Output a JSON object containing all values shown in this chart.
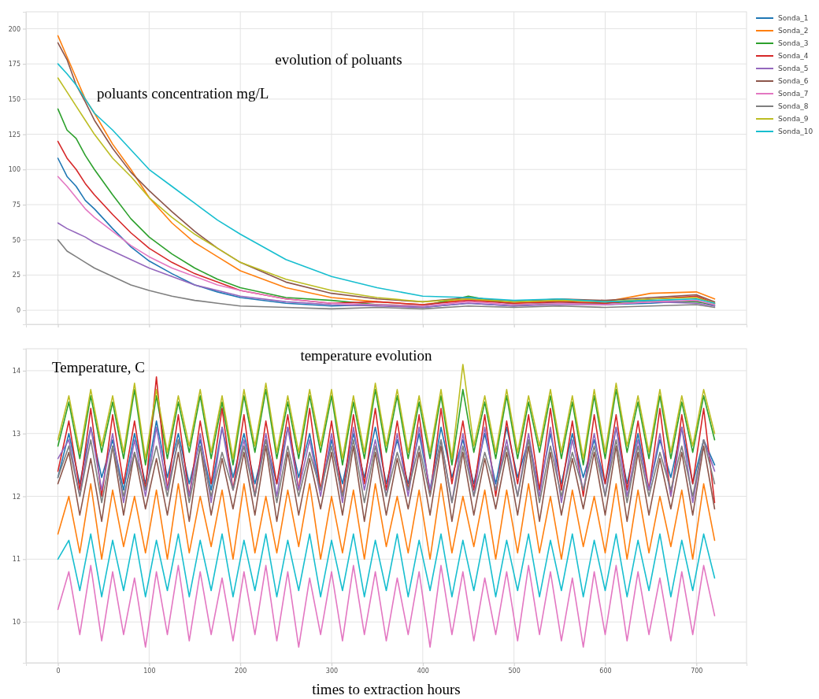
{
  "chart_data": [
    {
      "type": "line",
      "title": "evolution of poluants",
      "ylabel": "poluants concentration mg/L",
      "x": [
        0,
        10,
        20,
        30,
        40,
        60,
        80,
        100,
        125,
        150,
        175,
        200,
        250,
        300,
        350,
        400,
        450,
        500,
        550,
        600,
        650,
        700,
        720
      ],
      "xlim": [
        -35,
        755
      ],
      "xticks": [
        0,
        100,
        200,
        300,
        400,
        500,
        600,
        700
      ],
      "ylim": [
        -10,
        212
      ],
      "yticks": [
        0,
        25,
        50,
        75,
        100,
        125,
        150,
        175,
        200
      ],
      "grid": true,
      "legend": "top right",
      "tick_labels": "y",
      "series": [
        {
          "name": "Sonda_1",
          "color": "#1f77b4",
          "values": [
            108,
            95,
            88,
            78,
            72,
            58,
            45,
            35,
            26,
            18,
            13,
            9,
            5,
            3,
            4,
            2,
            5,
            3,
            6,
            4,
            5,
            7,
            3
          ]
        },
        {
          "name": "Sonda_2",
          "color": "#ff7f0e",
          "values": [
            195,
            180,
            165,
            150,
            140,
            118,
            100,
            80,
            62,
            48,
            38,
            28,
            16,
            9,
            6,
            4,
            8,
            5,
            7,
            6,
            12,
            13,
            8
          ]
        },
        {
          "name": "Sonda_3",
          "color": "#2ca02c",
          "values": [
            143,
            128,
            122,
            110,
            100,
            82,
            65,
            52,
            40,
            30,
            22,
            16,
            9,
            7,
            4,
            3,
            10,
            4,
            5,
            5,
            7,
            6,
            4
          ]
        },
        {
          "name": "Sonda_4",
          "color": "#d62728",
          "values": [
            120,
            108,
            100,
            90,
            82,
            68,
            55,
            44,
            34,
            26,
            20,
            14,
            8,
            5,
            6,
            4,
            7,
            5,
            6,
            5,
            8,
            10,
            5
          ]
        },
        {
          "name": "Sonda_5",
          "color": "#9467bd",
          "values": [
            62,
            58,
            55,
            52,
            48,
            42,
            36,
            30,
            24,
            18,
            14,
            10,
            6,
            4,
            3,
            2,
            5,
            3,
            4,
            4,
            6,
            5,
            3
          ]
        },
        {
          "name": "Sonda_6",
          "color": "#8c564b",
          "values": [
            190,
            178,
            160,
            148,
            135,
            115,
            98,
            85,
            70,
            56,
            44,
            34,
            20,
            12,
            8,
            6,
            9,
            6,
            8,
            7,
            9,
            11,
            6
          ]
        },
        {
          "name": "Sonda_7",
          "color": "#e377c2",
          "values": [
            95,
            88,
            80,
            72,
            66,
            56,
            46,
            38,
            30,
            24,
            18,
            14,
            8,
            5,
            4,
            3,
            6,
            4,
            5,
            4,
            6,
            7,
            4
          ]
        },
        {
          "name": "Sonda_8",
          "color": "#7f7f7f",
          "values": [
            50,
            42,
            38,
            34,
            30,
            24,
            18,
            14,
            10,
            7,
            5,
            3,
            2,
            1,
            2,
            1,
            3,
            2,
            3,
            2,
            3,
            4,
            2
          ]
        },
        {
          "name": "Sonda_9",
          "color": "#bcbd22",
          "values": [
            165,
            155,
            145,
            135,
            125,
            108,
            95,
            80,
            66,
            54,
            44,
            34,
            22,
            14,
            9,
            6,
            8,
            6,
            7,
            6,
            8,
            9,
            5
          ]
        },
        {
          "name": "Sonda_10",
          "color": "#17becf",
          "values": [
            175,
            168,
            160,
            150,
            140,
            128,
            114,
            100,
            88,
            76,
            64,
            54,
            36,
            24,
            16,
            10,
            9,
            7,
            8,
            6,
            7,
            8,
            5
          ]
        }
      ]
    },
    {
      "type": "line",
      "title": "temperature evolution",
      "ylabel": "Temperature, C",
      "xlabel": "times to extraction hours",
      "x": [
        0,
        12,
        24,
        36,
        48,
        60,
        72,
        84,
        96,
        108,
        120,
        132,
        144,
        156,
        168,
        180,
        192,
        204,
        216,
        228,
        240,
        252,
        264,
        276,
        288,
        300,
        312,
        324,
        336,
        348,
        360,
        372,
        384,
        396,
        408,
        420,
        432,
        444,
        456,
        468,
        480,
        492,
        504,
        516,
        528,
        540,
        552,
        564,
        576,
        588,
        600,
        612,
        624,
        636,
        648,
        660,
        672,
        684,
        696,
        708,
        720
      ],
      "xlim": [
        -35,
        755
      ],
      "xticks": [
        0,
        100,
        200,
        300,
        400,
        500,
        600,
        700
      ],
      "ylim": [
        9.35,
        14.35
      ],
      "yticks": [
        10,
        11,
        12,
        13,
        14
      ],
      "grid": true,
      "series": [
        {
          "color": "#1f77b4",
          "values": [
            12.3,
            13.0,
            12.2,
            13.1,
            12.3,
            12.9,
            12.1,
            13.0,
            12.2,
            13.2,
            12.3,
            13.0,
            12.2,
            12.9,
            12.1,
            13.1,
            12.3,
            13.0,
            12.2,
            12.9,
            12.2,
            13.1,
            12.3,
            13.0,
            12.1,
            12.9,
            12.2,
            13.0,
            12.3,
            13.1,
            12.2,
            12.9,
            12.2,
            13.0,
            12.1,
            13.1,
            12.3,
            12.9,
            12.2,
            13.0,
            12.2,
            13.1,
            12.3,
            12.9,
            12.1,
            13.0,
            12.2,
            13.0,
            12.3,
            12.9,
            12.2,
            13.1,
            12.2,
            13.0,
            12.1,
            12.9,
            12.3,
            13.1,
            12.2,
            12.9,
            12.5
          ]
        },
        {
          "color": "#ff7f0e",
          "values": [
            11.4,
            12.0,
            11.1,
            12.2,
            11.0,
            12.1,
            11.2,
            12.0,
            11.1,
            12.1,
            11.0,
            12.2,
            11.1,
            12.0,
            11.2,
            12.1,
            11.0,
            12.2,
            11.1,
            12.0,
            11.1,
            12.1,
            11.2,
            12.2,
            11.0,
            12.0,
            11.1,
            12.1,
            11.0,
            12.2,
            11.2,
            12.0,
            11.1,
            12.1,
            11.0,
            12.2,
            11.1,
            12.0,
            11.2,
            12.1,
            11.0,
            12.1,
            11.1,
            12.2,
            11.1,
            12.0,
            11.0,
            12.1,
            11.2,
            12.0,
            11.1,
            12.2,
            11.0,
            12.1,
            11.1,
            12.0,
            11.2,
            12.1,
            11.0,
            12.2,
            11.3
          ]
        },
        {
          "color": "#2ca02c",
          "values": [
            12.8,
            13.5,
            12.6,
            13.6,
            12.7,
            13.5,
            12.6,
            13.7,
            12.5,
            13.6,
            12.6,
            13.5,
            12.7,
            13.6,
            12.6,
            13.5,
            12.5,
            13.6,
            12.7,
            13.7,
            12.6,
            13.5,
            12.6,
            13.6,
            12.7,
            13.6,
            12.5,
            13.5,
            12.6,
            13.7,
            12.7,
            13.6,
            12.6,
            13.5,
            12.6,
            13.6,
            12.5,
            13.7,
            12.7,
            13.5,
            12.6,
            13.6,
            12.6,
            13.5,
            12.7,
            13.6,
            12.6,
            13.5,
            12.5,
            13.6,
            12.6,
            13.7,
            12.7,
            13.5,
            12.6,
            13.6,
            12.6,
            13.5,
            12.7,
            13.6,
            12.9
          ]
        },
        {
          "color": "#d62728",
          "values": [
            12.4,
            13.2,
            12.1,
            13.4,
            12.0,
            13.3,
            12.2,
            13.2,
            12.1,
            13.9,
            12.1,
            13.3,
            12.0,
            13.2,
            12.2,
            13.4,
            12.1,
            13.3,
            12.0,
            13.2,
            12.2,
            13.3,
            12.1,
            13.4,
            12.1,
            13.2,
            12.0,
            13.3,
            12.2,
            13.4,
            12.1,
            13.2,
            12.1,
            13.3,
            12.0,
            13.4,
            12.2,
            13.2,
            12.1,
            13.3,
            12.0,
            13.2,
            12.2,
            13.3,
            12.1,
            13.4,
            12.1,
            13.2,
            12.0,
            13.3,
            12.2,
            13.3,
            12.1,
            13.2,
            12.1,
            13.4,
            12.0,
            13.3,
            12.2,
            13.4,
            11.9
          ]
        },
        {
          "color": "#9467bd",
          "values": [
            12.6,
            12.9,
            12.0,
            13.1,
            12.1,
            13.0,
            11.9,
            12.9,
            12.0,
            13.1,
            12.1,
            12.9,
            12.0,
            13.0,
            11.9,
            13.1,
            12.1,
            12.9,
            12.0,
            13.0,
            12.0,
            13.1,
            12.1,
            12.9,
            12.0,
            13.0,
            11.9,
            13.1,
            12.1,
            12.9,
            12.0,
            13.0,
            12.0,
            13.1,
            12.1,
            12.9,
            11.9,
            13.0,
            12.0,
            13.1,
            12.1,
            12.9,
            12.0,
            13.0,
            12.0,
            13.1,
            11.9,
            12.9,
            12.1,
            13.0,
            12.0,
            13.1,
            12.0,
            12.9,
            12.1,
            13.0,
            12.0,
            13.1,
            11.9,
            12.9,
            12.4
          ]
        },
        {
          "color": "#8c564b",
          "values": [
            12.2,
            12.7,
            11.7,
            12.6,
            11.6,
            12.8,
            11.7,
            12.7,
            11.8,
            12.6,
            11.7,
            12.7,
            11.6,
            12.8,
            11.7,
            12.6,
            11.8,
            12.7,
            11.7,
            12.8,
            11.6,
            12.7,
            11.7,
            12.6,
            11.8,
            12.7,
            11.7,
            12.8,
            11.6,
            12.7,
            11.7,
            12.6,
            11.8,
            12.7,
            11.7,
            12.8,
            11.6,
            12.7,
            11.7,
            12.6,
            11.8,
            12.7,
            11.7,
            12.8,
            11.6,
            12.7,
            11.7,
            12.6,
            11.8,
            12.7,
            11.7,
            12.8,
            11.6,
            12.7,
            11.7,
            12.6,
            11.8,
            12.7,
            11.7,
            12.8,
            11.8
          ]
        },
        {
          "color": "#e377c2",
          "values": [
            10.2,
            10.8,
            9.8,
            10.9,
            9.7,
            10.8,
            9.8,
            10.7,
            9.6,
            10.8,
            9.8,
            10.9,
            9.7,
            10.8,
            9.8,
            10.7,
            9.7,
            10.8,
            9.8,
            10.9,
            9.7,
            10.8,
            9.6,
            10.7,
            9.8,
            10.8,
            9.7,
            10.9,
            9.8,
            10.8,
            9.7,
            10.7,
            9.8,
            10.8,
            9.6,
            10.9,
            9.8,
            10.8,
            9.7,
            10.7,
            9.8,
            10.8,
            9.7,
            10.9,
            9.8,
            10.8,
            9.7,
            10.7,
            9.6,
            10.8,
            9.8,
            10.9,
            9.7,
            10.8,
            9.8,
            10.7,
            9.7,
            10.8,
            9.8,
            10.9,
            10.1
          ]
        },
        {
          "color": "#7f7f7f",
          "values": [
            12.3,
            12.8,
            12.0,
            12.9,
            11.9,
            12.8,
            12.0,
            12.7,
            12.1,
            12.8,
            12.0,
            12.9,
            11.9,
            12.8,
            12.0,
            12.7,
            12.1,
            12.8,
            12.0,
            12.9,
            11.9,
            12.8,
            12.0,
            12.7,
            12.1,
            12.8,
            12.0,
            12.9,
            11.9,
            12.8,
            12.0,
            12.7,
            12.1,
            12.8,
            12.0,
            12.9,
            11.9,
            12.8,
            12.0,
            12.7,
            12.1,
            12.8,
            12.0,
            12.9,
            11.9,
            12.8,
            12.0,
            12.7,
            12.1,
            12.8,
            12.0,
            12.9,
            11.9,
            12.8,
            12.0,
            12.7,
            12.1,
            12.8,
            12.0,
            12.9,
            12.2
          ]
        },
        {
          "color": "#bcbd22",
          "values": [
            12.9,
            13.6,
            12.7,
            13.7,
            12.8,
            13.6,
            12.7,
            13.8,
            12.6,
            13.7,
            12.7,
            13.6,
            12.8,
            13.7,
            12.7,
            13.6,
            12.6,
            13.7,
            12.8,
            13.8,
            12.7,
            13.6,
            12.7,
            13.7,
            12.8,
            13.7,
            12.6,
            13.6,
            12.7,
            13.8,
            12.8,
            13.7,
            12.7,
            13.6,
            12.7,
            13.7,
            12.6,
            14.1,
            12.8,
            13.6,
            12.7,
            13.7,
            12.7,
            13.6,
            12.8,
            13.7,
            12.7,
            13.6,
            12.6,
            13.7,
            12.7,
            13.8,
            12.8,
            13.6,
            12.7,
            13.7,
            12.7,
            13.6,
            12.8,
            13.7,
            13.0
          ]
        },
        {
          "color": "#17becf",
          "values": [
            11.0,
            11.3,
            10.5,
            11.4,
            10.4,
            11.3,
            10.5,
            11.4,
            10.4,
            11.3,
            10.5,
            11.4,
            10.4,
            11.3,
            10.5,
            11.4,
            10.4,
            11.3,
            10.5,
            11.4,
            10.4,
            11.3,
            10.5,
            11.4,
            10.4,
            11.3,
            10.5,
            11.4,
            10.4,
            11.3,
            10.5,
            11.4,
            10.4,
            11.3,
            10.5,
            11.4,
            10.4,
            11.3,
            10.5,
            11.4,
            10.4,
            11.3,
            10.5,
            11.4,
            10.4,
            11.3,
            10.5,
            11.4,
            10.4,
            11.3,
            10.5,
            11.4,
            10.4,
            11.3,
            10.5,
            11.4,
            10.4,
            11.3,
            10.5,
            11.4,
            10.7
          ]
        }
      ]
    }
  ]
}
